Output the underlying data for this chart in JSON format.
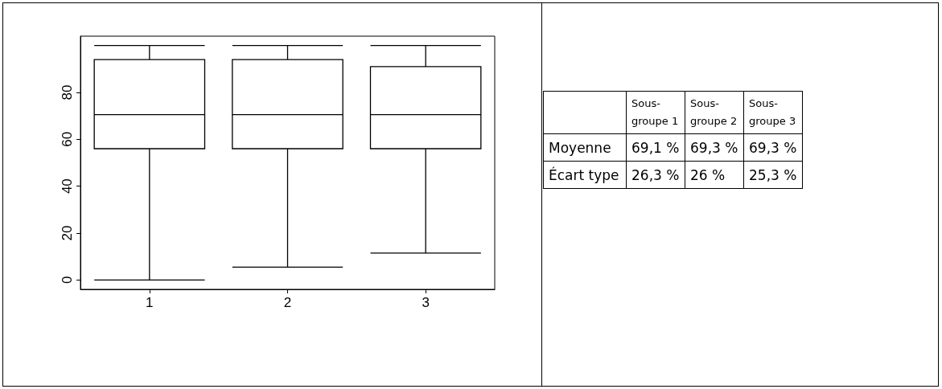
{
  "chart_data": [
    {
      "type": "box",
      "categories": [
        "1",
        "2",
        "3"
      ],
      "ylim": [
        -4,
        104
      ],
      "yticks": [
        0,
        20,
        40,
        60,
        80
      ],
      "grid": false,
      "color": "#000000",
      "boxes": [
        {
          "low": 0,
          "q1": 56,
          "median": 70.5,
          "q3": 94,
          "high": 100
        },
        {
          "low": 5.5,
          "q1": 56,
          "median": 70.5,
          "q3": 94,
          "high": 100
        },
        {
          "low": 11.5,
          "q1": 56,
          "median": 70.5,
          "q3": 91,
          "high": 100
        }
      ]
    },
    {
      "type": "other",
      "categories": [
        "Sous-groupe 1",
        "Sous-groupe 2",
        "Sous-groupe 3"
      ],
      "y_categories": [
        "Moyenne",
        "Écart type"
      ],
      "cell_labels": [
        [
          "69,1 %",
          "69,3 %",
          "69,3 %"
        ],
        [
          "26,3 %",
          "26 %",
          "25,3 %"
        ]
      ]
    }
  ]
}
